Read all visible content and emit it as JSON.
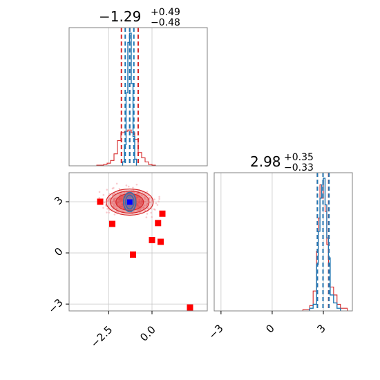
{
  "chart_data": [
    {
      "panel": "marginal-param-1",
      "type": "histogram",
      "title": {
        "value": "−1.29",
        "plus": "+0.49",
        "minus": "−0.48"
      },
      "xlim": [
        -4.8,
        3.2
      ],
      "grid_x": [
        -2.5,
        0.0
      ],
      "grid": true,
      "colors": {
        "narrow": "#1f77b4",
        "wide": "#d62728"
      },
      "narrow": {
        "bins": [
          -1.7,
          -1.6,
          -1.5,
          -1.4,
          -1.3,
          -1.2,
          -1.1,
          -1.0,
          -0.9
        ],
        "heights": [
          0.03,
          0.16,
          0.55,
          0.93,
          1.0,
          0.62,
          0.22,
          0.05
        ],
        "quantile_lines": [
          -1.55,
          -1.29,
          -1.05
        ]
      },
      "wide": {
        "bins": [
          -3.2,
          -2.8,
          -2.6,
          -2.4,
          -2.2,
          -2.0,
          -1.8,
          -1.6,
          -1.4,
          -1.2,
          -1.0,
          -0.8,
          -0.6,
          -0.4,
          -0.2,
          0.0,
          0.2
        ],
        "heights": [
          0.005,
          0.01,
          0.02,
          0.04,
          0.09,
          0.19,
          0.25,
          0.26,
          0.27,
          0.25,
          0.2,
          0.1,
          0.06,
          0.03,
          0.01,
          0.005
        ],
        "quantile_lines": [
          -1.77,
          -1.29,
          -0.8
        ]
      }
    },
    {
      "panel": "joint-param-1-param-2",
      "type": "scatter",
      "xlim": [
        -4.8,
        3.2
      ],
      "ylim": [
        -3.4,
        4.7
      ],
      "grid_x": [
        -2.5,
        0.0
      ],
      "grid_y": [
        -3,
        0,
        3
      ],
      "x_tick_labels": [
        "−2.5",
        "0.0"
      ],
      "y_tick_labels": [
        "−3",
        "0",
        "3"
      ],
      "grid": true,
      "center": {
        "x": -1.29,
        "y": 2.98
      },
      "points": [
        {
          "x": -3.0,
          "y": 3.0
        },
        {
          "x": -2.3,
          "y": 1.7
        },
        {
          "x": -1.1,
          "y": -0.1
        },
        {
          "x": 0.0,
          "y": 0.75
        },
        {
          "x": 0.35,
          "y": 1.75
        },
        {
          "x": 0.5,
          "y": 0.65
        },
        {
          "x": 0.6,
          "y": 2.3
        },
        {
          "x": 2.2,
          "y": -3.2
        }
      ]
    },
    {
      "panel": "marginal-param-2",
      "type": "histogram",
      "title": {
        "value": "2.98",
        "plus": "+0.35",
        "minus": "−0.33"
      },
      "xlim": [
        -3.4,
        4.7
      ],
      "grid_x": [
        -3,
        0,
        3
      ],
      "x_tick_labels": [
        "−3",
        "0",
        "3"
      ],
      "grid": true,
      "colors": {
        "narrow": "#1f77b4",
        "wide": "#d62728"
      },
      "narrow": {
        "bins": [
          2.2,
          2.4,
          2.6,
          2.7,
          2.8,
          2.9,
          3.0,
          3.1,
          3.2,
          3.3,
          3.4,
          3.6,
          3.8,
          4.0
        ],
        "heights": [
          0.02,
          0.05,
          0.35,
          0.6,
          0.85,
          0.95,
          1.0,
          0.8,
          0.55,
          0.4,
          0.12,
          0.06,
          0.02
        ],
        "quantile_lines": [
          2.65,
          2.98,
          3.33
        ]
      },
      "wide": {
        "bins": [
          1.8,
          2.2,
          2.4,
          2.6,
          2.7,
          2.8,
          2.9,
          3.0,
          3.1,
          3.2,
          3.3,
          3.4,
          3.6,
          3.8,
          4.0,
          4.4
        ],
        "heights": [
          0.01,
          0.04,
          0.15,
          0.45,
          0.7,
          0.95,
          0.85,
          1.0,
          0.75,
          0.5,
          0.35,
          0.18,
          0.12,
          0.05,
          0.02
        ],
        "quantile_lines": [
          2.65,
          2.98,
          3.31
        ]
      }
    }
  ]
}
